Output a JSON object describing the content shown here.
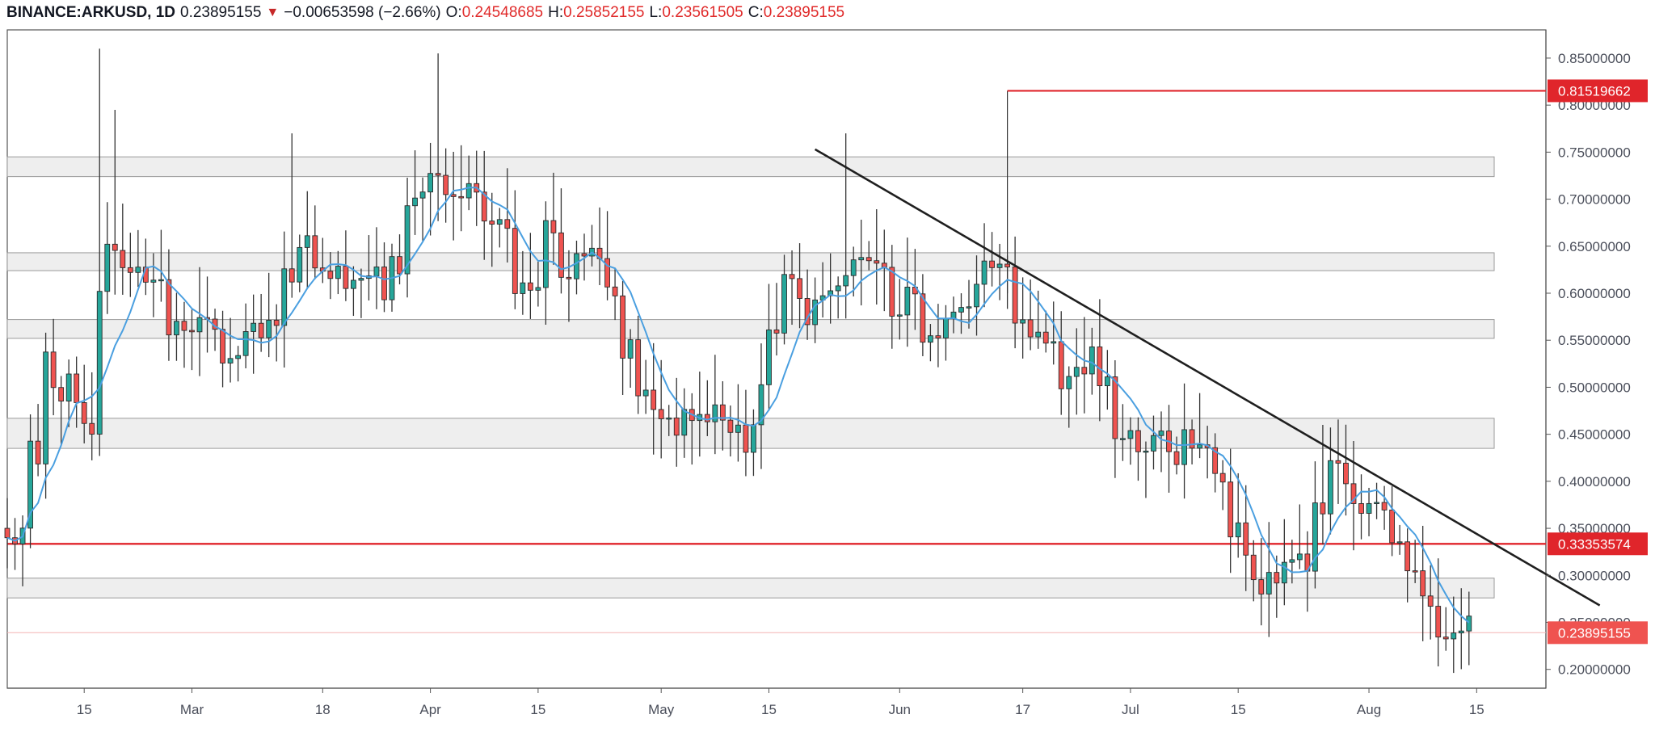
{
  "header": {
    "symbol": "BINANCE:ARKUSD, 1D",
    "last": "0.23895155",
    "arrow": "▼",
    "change": "−0.00653598 (−2.66%)",
    "o_label": "O:",
    "o_value": "0.24548685",
    "h_label": "H:",
    "h_value": "0.25852155",
    "l_label": "L:",
    "l_value": "0.23561505",
    "c_label": "C:",
    "c_value": "0.23895155"
  },
  "colors": {
    "up": "#26a69a",
    "down": "#ef5350",
    "ma": "#4a9fe0",
    "trendline": "#1f1f1f",
    "level": "#e0252b",
    "zone_fill": "#eeeeee",
    "zone_border": "#9a9a9a"
  },
  "chart_data": {
    "type": "candlestick",
    "timeframe": "1D",
    "y_axis": {
      "min": 0.18,
      "max": 0.88,
      "ticks": [
        "0.85000000",
        "0.80000000",
        "0.75000000",
        "0.70000000",
        "0.65000000",
        "0.60000000",
        "0.55000000",
        "0.50000000",
        "0.45000000",
        "0.40000000",
        "0.35000000",
        "0.30000000",
        "0.25000000",
        "0.20000000"
      ]
    },
    "x_axis": {
      "start": "2019-02-05",
      "end": "2019-08-24",
      "ticks": [
        {
          "label": "15",
          "date": "2019-02-15"
        },
        {
          "label": "Mar",
          "date": "2019-03-01"
        },
        {
          "label": "18",
          "date": "2019-03-18"
        },
        {
          "label": "Apr",
          "date": "2019-04-01"
        },
        {
          "label": "15",
          "date": "2019-04-15"
        },
        {
          "label": "May",
          "date": "2019-05-01"
        },
        {
          "label": "15",
          "date": "2019-05-15"
        },
        {
          "label": "Jun",
          "date": "2019-06-01"
        },
        {
          "label": "17",
          "date": "2019-06-17"
        },
        {
          "label": "Jul",
          "date": "2019-07-01"
        },
        {
          "label": "15",
          "date": "2019-07-15"
        },
        {
          "label": "Aug",
          "date": "2019-08-01"
        },
        {
          "label": "15",
          "date": "2019-08-15"
        }
      ]
    },
    "price_labels": [
      {
        "value": "0.81519662",
        "level": 0.8152,
        "color": "#e0252b"
      },
      {
        "value": "0.33353574",
        "level": 0.3335,
        "color": "#e0252b"
      },
      {
        "value": "0.23895155",
        "level": 0.239,
        "color": "#ef5350"
      }
    ],
    "zones": [
      [
        0.724,
        0.745
      ],
      [
        0.624,
        0.643
      ],
      [
        0.552,
        0.572
      ],
      [
        0.435,
        0.467
      ],
      [
        0.276,
        0.297
      ]
    ],
    "horizontal_lines": [
      {
        "y": 0.3335,
        "color": "#e0252b"
      }
    ],
    "spike_line": {
      "x": "2019-06-15",
      "y_from": 0.6,
      "y_to": 0.8152
    },
    "trendline": {
      "from": {
        "x": "2019-05-21",
        "y": 0.753
      },
      "to": {
        "x": "2019-08-31",
        "y": 0.268
      }
    },
    "anchors": [
      [
        "2019-02-05",
        0.35,
        0.34,
        0.355
      ],
      [
        "2019-02-07",
        0.35,
        0.47,
        0.34
      ],
      [
        "2019-02-09",
        0.41,
        0.565,
        0.4
      ],
      [
        "2019-02-11",
        0.51,
        0.49,
        0.515
      ],
      [
        "2019-02-13",
        0.5,
        0.48,
        0.51
      ],
      [
        "2019-02-15",
        0.46,
        0.46,
        0.465
      ],
      [
        "2019-02-16",
        0.46,
        0.615,
        0.455
      ],
      [
        "2019-02-17",
        0.61,
        0.675,
        0.6
      ],
      [
        "2019-02-19",
        0.65,
        0.64,
        0.655
      ],
      [
        "2019-02-21",
        0.63,
        0.62,
        0.64
      ],
      [
        "2019-02-23",
        0.62,
        0.645,
        0.61
      ],
      [
        "2019-02-25",
        0.61,
        0.555,
        0.6
      ],
      [
        "2019-02-27",
        0.56,
        0.565,
        0.55
      ],
      [
        "2019-03-01",
        0.57,
        0.565,
        0.575
      ],
      [
        "2019-03-04",
        0.56,
        0.535,
        0.565
      ],
      [
        "2019-03-07",
        0.52,
        0.56,
        0.51
      ],
      [
        "2019-03-10",
        0.55,
        0.545,
        0.555
      ],
      [
        "2019-03-12",
        0.58,
        0.62,
        0.575
      ],
      [
        "2019-03-14",
        0.62,
        0.665,
        0.61
      ],
      [
        "2019-03-16",
        0.66,
        0.645,
        0.665
      ],
      [
        "2019-03-18",
        0.63,
        0.62,
        0.635
      ],
      [
        "2019-03-21",
        0.62,
        0.615,
        0.625
      ],
      [
        "2019-03-24",
        0.62,
        0.63,
        0.61
      ],
      [
        "2019-03-26",
        0.6,
        0.625,
        0.59
      ],
      [
        "2019-03-28",
        0.63,
        0.68,
        0.62
      ],
      [
        "2019-03-31",
        0.71,
        0.725,
        0.7
      ],
      [
        "2019-04-02",
        0.72,
        0.69,
        0.73
      ],
      [
        "2019-04-05",
        0.7,
        0.72,
        0.69
      ],
      [
        "2019-04-08",
        0.68,
        0.675,
        0.685
      ],
      [
        "2019-04-11",
        0.67,
        0.6,
        0.675
      ],
      [
        "2019-04-13",
        0.62,
        0.615,
        0.63
      ],
      [
        "2019-04-15",
        0.62,
        0.675,
        0.61
      ],
      [
        "2019-04-17",
        0.67,
        0.62,
        0.675
      ],
      [
        "2019-04-19",
        0.62,
        0.64,
        0.615
      ],
      [
        "2019-04-21",
        0.64,
        0.645,
        0.63
      ],
      [
        "2019-04-23",
        0.65,
        0.61,
        0.655
      ],
      [
        "2019-04-25",
        0.6,
        0.55,
        0.605
      ],
      [
        "2019-04-27",
        0.54,
        0.505,
        0.545
      ],
      [
        "2019-04-29",
        0.49,
        0.475,
        0.495
      ],
      [
        "2019-05-01",
        0.47,
        0.48,
        0.46
      ],
      [
        "2019-05-03",
        0.46,
        0.455,
        0.47
      ],
      [
        "2019-05-05",
        0.47,
        0.465,
        0.48
      ],
      [
        "2019-05-07",
        0.47,
        0.48,
        0.46
      ],
      [
        "2019-05-09",
        0.47,
        0.45,
        0.475
      ],
      [
        "2019-05-11",
        0.45,
        0.43,
        0.455
      ],
      [
        "2019-05-12",
        0.43,
        0.455,
        0.425
      ],
      [
        "2019-05-14",
        0.49,
        0.555,
        0.485
      ],
      [
        "2019-05-16",
        0.57,
        0.635,
        0.565
      ],
      [
        "2019-05-18",
        0.62,
        0.59,
        0.625
      ],
      [
        "2019-05-20",
        0.58,
        0.59,
        0.57
      ],
      [
        "2019-05-23",
        0.6,
        0.62,
        0.59
      ],
      [
        "2019-05-25",
        0.62,
        0.655,
        0.615
      ],
      [
        "2019-05-27",
        0.64,
        0.625,
        0.645
      ],
      [
        "2019-05-30",
        0.62,
        0.59,
        0.625
      ],
      [
        "2019-06-01",
        0.59,
        0.615,
        0.58
      ],
      [
        "2019-06-03",
        0.61,
        0.565,
        0.615
      ],
      [
        "2019-06-05",
        0.56,
        0.545,
        0.565
      ],
      [
        "2019-06-07",
        0.56,
        0.595,
        0.55
      ],
      [
        "2019-06-09",
        0.59,
        0.595,
        0.585
      ],
      [
        "2019-06-11",
        0.6,
        0.625,
        0.595
      ],
      [
        "2019-06-13",
        0.62,
        0.615,
        0.625
      ],
      [
        "2019-06-15",
        0.63,
        0.58,
        0.635
      ],
      [
        "2019-06-17",
        0.58,
        0.565,
        0.585
      ],
      [
        "2019-06-19",
        0.56,
        0.55,
        0.565
      ],
      [
        "2019-06-21",
        0.55,
        0.515,
        0.555
      ],
      [
        "2019-06-23",
        0.51,
        0.52,
        0.5
      ],
      [
        "2019-06-26",
        0.53,
        0.51,
        0.535
      ],
      [
        "2019-06-28",
        0.5,
        0.43,
        0.505
      ],
      [
        "2019-07-01",
        0.45,
        0.43,
        0.46
      ],
      [
        "2019-07-03",
        0.44,
        0.45,
        0.43
      ],
      [
        "2019-07-05",
        0.44,
        0.425,
        0.445
      ],
      [
        "2019-07-07",
        0.43,
        0.445,
        0.42
      ],
      [
        "2019-07-09",
        0.45,
        0.44,
        0.46
      ],
      [
        "2019-07-11",
        0.45,
        0.41,
        0.455
      ],
      [
        "2019-07-13",
        0.4,
        0.36,
        0.405
      ],
      [
        "2019-07-15",
        0.35,
        0.31,
        0.355
      ],
      [
        "2019-07-17",
        0.31,
        0.285,
        0.315
      ],
      [
        "2019-07-18",
        0.28,
        0.29,
        0.275
      ],
      [
        "2019-07-20",
        0.3,
        0.32,
        0.295
      ],
      [
        "2019-07-22",
        0.32,
        0.31,
        0.325
      ],
      [
        "2019-07-24",
        0.31,
        0.355,
        0.305
      ],
      [
        "2019-07-26",
        0.37,
        0.415,
        0.365
      ],
      [
        "2019-07-28",
        0.41,
        0.39,
        0.415
      ],
      [
        "2019-07-30",
        0.39,
        0.375,
        0.395
      ],
      [
        "2019-08-01",
        0.38,
        0.39,
        0.37
      ],
      [
        "2019-08-03",
        0.38,
        0.34,
        0.385
      ],
      [
        "2019-08-05",
        0.33,
        0.32,
        0.335
      ],
      [
        "2019-08-07",
        0.31,
        0.28,
        0.315
      ],
      [
        "2019-08-09",
        0.27,
        0.25,
        0.275
      ],
      [
        "2019-08-11",
        0.24,
        0.25,
        0.235
      ],
      [
        "2019-08-13",
        0.25,
        0.245,
        0.255
      ],
      [
        "2019-08-14",
        0.2455,
        0.239,
        0.2586
      ]
    ]
  }
}
